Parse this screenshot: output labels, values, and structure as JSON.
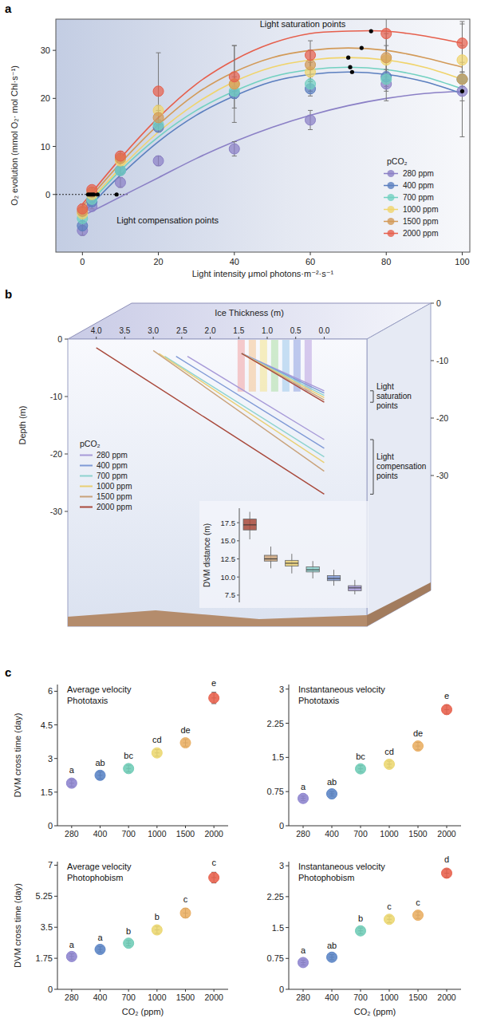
{
  "panel_labels": [
    "a",
    "b",
    "c"
  ],
  "chart_data": [
    {
      "type": "scatter",
      "x_label": "Light intensity μmol photons·m⁻²·s⁻¹",
      "y_label": "O₂ evolution (mmol O₂· mol Chl·s⁻¹)",
      "xlim": [
        -7,
        102
      ],
      "ylim": [
        -12,
        36.5
      ],
      "xticks": [
        0,
        20,
        40,
        60,
        80,
        100
      ],
      "yticks": [
        0,
        10,
        20,
        30
      ],
      "legend": "lower right",
      "legend_title": "pCO₂",
      "annotations": [
        "Light saturation points",
        "Light compensation points"
      ],
      "x": [
        0,
        2.5,
        10,
        20,
        40,
        60,
        80,
        100
      ],
      "series": [
        {
          "name": "280 ppm",
          "color": "#8b80c6",
          "values": [
            -7.5,
            -2.5,
            2.5,
            7,
            9.5,
            15.5,
            23,
            21.5
          ],
          "errors": [
            1,
            0.5,
            1,
            1,
            1.5,
            2,
            1.5,
            2
          ],
          "fit": {
            "x": [
              0,
              10,
              20,
              30,
              40,
              50,
              60,
              70,
              80,
              90,
              100
            ],
            "values": [
              -4.5,
              -0.5,
              3.5,
              7.5,
              11,
              14,
              16.5,
              18.5,
              20,
              21,
              21.5
            ]
          },
          "saturation_point": [
            100,
            21.5
          ],
          "compensation_point": 9
        },
        {
          "name": "400 ppm",
          "color": "#5b7fbf",
          "values": [
            -6.5,
            -1.5,
            5,
            14,
            21,
            22,
            24.5,
            24
          ],
          "errors": [
            1,
            0.5,
            0.8,
            1,
            1,
            1.5,
            1.5,
            1.5
          ],
          "fit": {
            "x": [
              0,
              10,
              20,
              30,
              40,
              50,
              60,
              70,
              80,
              90,
              100
            ],
            "values": [
              -4,
              4,
              11,
              16.5,
              20.5,
              23.5,
              25,
              25.5,
              25,
              23.5,
              21
            ]
          },
          "saturation_point": [
            71,
            25.5
          ],
          "compensation_point": 4
        },
        {
          "name": "700 ppm",
          "color": "#72d1c1",
          "values": [
            -5,
            -1,
            5,
            14.5,
            21.5,
            23,
            24,
            24
          ],
          "errors": [
            1,
            0.5,
            0.8,
            1,
            1,
            1.5,
            1.5,
            1.5
          ],
          "fit": {
            "x": [
              0,
              10,
              20,
              30,
              40,
              50,
              60,
              70,
              80,
              90,
              100
            ],
            "values": [
              -3.5,
              5,
              12,
              17.5,
              21.5,
              24.5,
              26,
              26.5,
              26,
              24.5,
              22
            ]
          },
          "saturation_point": [
            70.5,
            26.5
          ],
          "compensation_point": 3
        },
        {
          "name": "1000 ppm",
          "color": "#f0d46c",
          "values": [
            -4,
            0,
            7,
            17.5,
            23,
            25.5,
            28,
            28
          ],
          "errors": [
            1,
            0.5,
            1,
            1,
            1.5,
            2,
            3,
            3
          ],
          "fit": {
            "x": [
              0,
              10,
              20,
              30,
              40,
              50,
              60,
              70,
              80,
              90,
              100
            ],
            "values": [
              -3,
              5.5,
              13,
              19,
              23.5,
              26.5,
              28,
              28.5,
              28,
              26.5,
              24
            ]
          },
          "saturation_point": [
            70,
            28.5
          ],
          "compensation_point": 2.5
        },
        {
          "name": "1500 ppm",
          "color": "#d29a58",
          "values": [
            -3.5,
            0.5,
            7.5,
            16,
            23,
            27,
            28.5,
            24
          ],
          "errors": [
            0.8,
            0.5,
            1,
            1.5,
            8,
            3,
            5,
            12
          ],
          "fit": {
            "x": [
              0,
              10,
              20,
              30,
              40,
              50,
              60,
              70,
              80,
              90,
              100
            ],
            "values": [
              -2.5,
              6.5,
              14.5,
              21,
              25.5,
              28.5,
              30,
              30.5,
              30,
              28.5,
              26.5
            ]
          },
          "saturation_point": [
            73.5,
            30.5
          ],
          "compensation_point": 2
        },
        {
          "name": "2000 ppm",
          "color": "#e65f4c",
          "values": [
            -3,
            1,
            8,
            21.5,
            24.5,
            29,
            33.5,
            31.5
          ],
          "errors": [
            1,
            0.5,
            1,
            8,
            6.5,
            3,
            14,
            4
          ],
          "fit": {
            "x": [
              0,
              10,
              20,
              30,
              40,
              50,
              60,
              70,
              80,
              90,
              100
            ],
            "values": [
              -2,
              7.5,
              16,
              23,
              28,
              31.5,
              33.5,
              34,
              34,
              33,
              31.5
            ]
          },
          "saturation_point": [
            76,
            34
          ],
          "compensation_point": 1.5
        }
      ]
    },
    {
      "type": "line",
      "x_label": "Ice Thickness (m)",
      "y_label": "Depth (m)",
      "xlim": [
        4.5,
        -0.75
      ],
      "ylim": [
        -50,
        0
      ],
      "xticks": [
        {
          "value": 4,
          "label": "4.0"
        },
        3.5,
        {
          "value": 3,
          "label": "3.0"
        },
        2.5,
        {
          "value": 2,
          "label": "2.0"
        },
        1.5,
        {
          "value": 1,
          "label": "1.0"
        },
        0.5,
        {
          "value": 0,
          "label": "0.0"
        }
      ],
      "yticks": [
        0,
        -10,
        -20,
        -30
      ],
      "legend": "lower left",
      "legend_title": "pCO₂",
      "annotations": [
        "Light saturation points",
        "Light compensation points"
      ],
      "inset": {
        "type": "box",
        "y_label": "DVM distance (m)",
        "ylim": [
          6.5,
          19.5
        ],
        "yticks": [
          7.5,
          {
            "value": 10,
            "label": "10.0"
          },
          12.5,
          {
            "value": 15,
            "label": "15.0"
          },
          17.5
        ]
      },
      "series": [
        {
          "name": "280 ppm",
          "color": "#a79ad8",
          "saturation": {
            "x": [
              1.45,
              0
            ],
            "values": [
              -2.5,
              -9
            ]
          },
          "compensation": {
            "x": [
              2.4,
              0
            ],
            "values": [
              -3,
              -17.5
            ]
          },
          "dvm_distance": {
            "whisker_low": 7.6,
            "q1": 8.1,
            "median": 8.5,
            "q3": 8.8,
            "whisker_high": 9.6
          }
        },
        {
          "name": "400 ppm",
          "color": "#7f9ad6",
          "saturation": {
            "x": [
              1.45,
              0
            ],
            "values": [
              -2.5,
              -9.4
            ]
          },
          "compensation": {
            "x": [
              2.6,
              0
            ],
            "values": [
              -3,
              -19
            ]
          },
          "dvm_distance": {
            "whisker_low": 8.8,
            "q1": 9.5,
            "median": 9.8,
            "q3": 10.2,
            "whisker_high": 11
          }
        },
        {
          "name": "700 ppm",
          "color": "#8ed3cf",
          "saturation": {
            "x": [
              1.45,
              0
            ],
            "values": [
              -2.5,
              -9.8
            ]
          },
          "compensation": {
            "x": [
              2.8,
              0
            ],
            "values": [
              -3,
              -20.5
            ]
          },
          "dvm_distance": {
            "whisker_low": 9.8,
            "q1": 10.7,
            "median": 11,
            "q3": 11.4,
            "whisker_high": 12.2
          }
        },
        {
          "name": "1000 ppm",
          "color": "#e9cf73",
          "saturation": {
            "x": [
              1.45,
              0
            ],
            "values": [
              -2.5,
              -10.2
            ]
          },
          "compensation": {
            "x": [
              2.9,
              0
            ],
            "values": [
              -2.5,
              -21.5
            ]
          },
          "dvm_distance": {
            "whisker_low": 10.5,
            "q1": 11.5,
            "median": 11.9,
            "q3": 12.3,
            "whisker_high": 13.2
          }
        },
        {
          "name": "1500 ppm",
          "color": "#c9a27a",
          "saturation": {
            "x": [
              1.45,
              0
            ],
            "values": [
              -2.5,
              -10.6
            ]
          },
          "compensation": {
            "x": [
              3,
              0
            ],
            "values": [
              -2,
              -23
            ]
          },
          "dvm_distance": {
            "whisker_low": 11.2,
            "q1": 12.2,
            "median": 12.5,
            "q3": 13,
            "whisker_high": 14.2
          }
        },
        {
          "name": "2000 ppm",
          "color": "#a8483a",
          "saturation": {
            "x": [
              1.45,
              0
            ],
            "values": [
              -2.5,
              -11
            ]
          },
          "compensation": {
            "x": [
              4,
              0
            ],
            "values": [
              -1.5,
              -27
            ]
          },
          "dvm_distance": {
            "whisker_low": 15.2,
            "q1": 16.5,
            "median": 17.2,
            "q3": 18,
            "whisker_high": 19
          }
        }
      ]
    },
    {
      "type": "scatter",
      "title": "Average velocity Phototaxis",
      "y_label": "DVM cross time (day)",
      "categories": [
        "280",
        "400",
        "700",
        "1000",
        "1500",
        "2000"
      ],
      "ylim": [
        0,
        6.3
      ],
      "yticks": [
        0,
        1.5,
        3,
        4.5,
        6
      ],
      "series": [
        {
          "colors": [
            "#8f86cf",
            "#5d86c6",
            "#72cdb8",
            "#ecd873",
            "#eab066",
            "#e8634f"
          ],
          "values": [
            1.9,
            2.25,
            2.55,
            3.25,
            3.7,
            5.7
          ],
          "errors": [
            0.15,
            0.15,
            0.15,
            0.15,
            0.15,
            0.25
          ],
          "annotations": [
            "a",
            "ab",
            "bc",
            "cd",
            "de",
            "e"
          ]
        }
      ]
    },
    {
      "type": "scatter",
      "title": "Instantaneous velocity Phototaxis",
      "categories": [
        "280",
        "400",
        "700",
        "1000",
        "1500",
        "2000"
      ],
      "ylim": [
        0,
        3.1
      ],
      "yticks": [
        0,
        0.75,
        1.5,
        2.25,
        3
      ],
      "series": [
        {
          "colors": [
            "#8f86cf",
            "#5d86c6",
            "#72cdb8",
            "#ecd873",
            "#eab066",
            "#e8634f"
          ],
          "values": [
            0.6,
            0.7,
            1.25,
            1.35,
            1.75,
            2.55
          ],
          "errors": [
            0.05,
            0.05,
            0.07,
            0.07,
            0.08,
            0.1
          ],
          "annotations": [
            "a",
            "ab",
            "bc",
            "cd",
            "de",
            "e"
          ]
        }
      ]
    },
    {
      "type": "scatter",
      "title": "Average velocity Photophobism",
      "y_label": "DVM cross time (day)",
      "x_label": "CO₂ (ppm)",
      "categories": [
        "280",
        "400",
        "700",
        "1000",
        "1500",
        "2000"
      ],
      "ylim": [
        0,
        7.2
      ],
      "yticks": [
        0,
        1.75,
        3.5,
        5.25,
        7
      ],
      "series": [
        {
          "colors": [
            "#8f86cf",
            "#5d86c6",
            "#72cdb8",
            "#ecd873",
            "#eab066",
            "#e8634f"
          ],
          "values": [
            1.85,
            2.25,
            2.6,
            3.35,
            4.3,
            6.3
          ],
          "errors": [
            0.15,
            0.15,
            0.15,
            0.2,
            0.25,
            0.3
          ],
          "annotations": [
            "a",
            "a",
            "b",
            "b",
            "c",
            "c"
          ]
        }
      ]
    },
    {
      "type": "scatter",
      "title": "Instantaneous velocity Photophobism",
      "x_label": "CO₂ (ppm)",
      "categories": [
        "280",
        "400",
        "700",
        "1000",
        "1500",
        "2000"
      ],
      "ylim": [
        0,
        3.1
      ],
      "yticks": [
        0,
        0.75,
        1.5,
        2.25,
        3
      ],
      "series": [
        {
          "colors": [
            "#8f86cf",
            "#5d86c6",
            "#72cdb8",
            "#ecd873",
            "#eab066",
            "#e8634f"
          ],
          "values": [
            0.65,
            0.78,
            1.42,
            1.7,
            1.8,
            2.82
          ],
          "errors": [
            0.06,
            0.06,
            0.07,
            0.08,
            0.08,
            0.1
          ],
          "annotations": [
            "a",
            "ab",
            "b",
            "c",
            "c",
            "d"
          ]
        }
      ]
    }
  ]
}
